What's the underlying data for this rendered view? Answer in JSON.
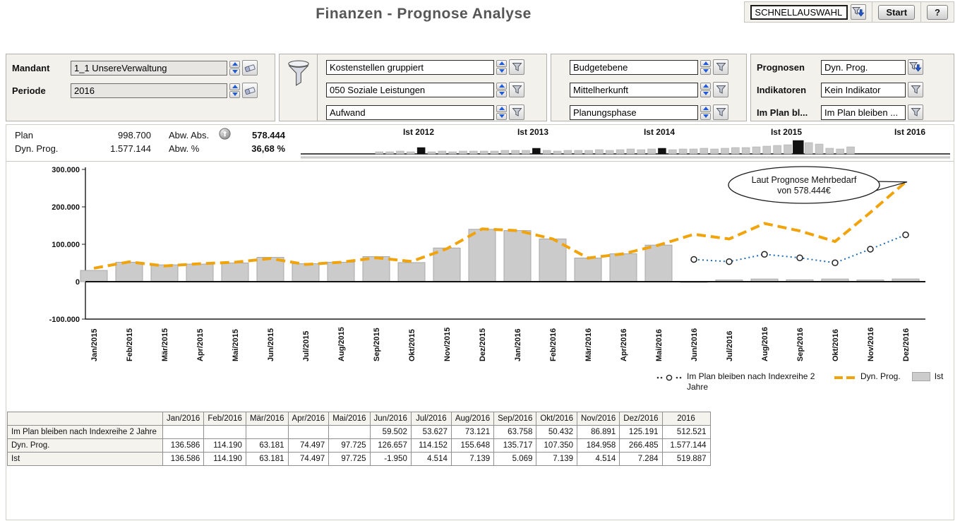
{
  "header": {
    "title": "Finanzen - Prognose Analyse",
    "quick_select_value": "SCHNELLAUSWAHL",
    "start_label": "Start",
    "help_label": "?"
  },
  "icons": {
    "filter": "funnel",
    "filter_apply": "funnel-with-down-arrow",
    "spinner": "▲▼",
    "reset": "eraser",
    "deviation_up": "↑"
  },
  "filters": {
    "mandant": {
      "label": "Mandant",
      "value": "1_1 UnsereVerwaltung"
    },
    "periode": {
      "label": "Periode",
      "value": "2016"
    },
    "dimension1": {
      "value": "Kostenstellen gruppiert"
    },
    "dimension2": {
      "value": "050 Soziale Leistungen"
    },
    "dimension3": {
      "value": "Aufwand"
    },
    "budget1": {
      "value": "Budgetebene"
    },
    "budget2": {
      "value": "Mittelherkunft"
    },
    "budget3": {
      "value": "Planungsphase"
    },
    "prognosen": {
      "label": "Prognosen",
      "value": "Dyn. Prog."
    },
    "indikatoren": {
      "label": "Indikatoren",
      "value": "Kein Indikator"
    },
    "im_plan": {
      "label": "Im Plan bl...",
      "value": "Im Plan bleiben ..."
    }
  },
  "stats": {
    "plan": {
      "label": "Plan",
      "value": "998.700"
    },
    "dyn_prog": {
      "label": "Dyn. Prog.",
      "value": "1.577.144"
    },
    "abw_abs": {
      "label": "Abw. Abs.",
      "value": "578.444"
    },
    "abw_pct": {
      "label": "Abw. %",
      "value": "36,68 %"
    }
  },
  "timeline": {
    "year_labels": [
      "Ist 2012",
      "Ist 2013",
      "Ist 2014",
      "Ist 2015",
      "Ist 2016"
    ],
    "spark": {
      "values": [
        0,
        0,
        0,
        0,
        0,
        0,
        0,
        2,
        2,
        3,
        2,
        8,
        2,
        3,
        2,
        3,
        3,
        3,
        3,
        4,
        4,
        4,
        7,
        4,
        3,
        4,
        4,
        4,
        5,
        4,
        5,
        6,
        5,
        6,
        7,
        5,
        6,
        6,
        7,
        6,
        7,
        8,
        8,
        9,
        10,
        11,
        12,
        18,
        15,
        13,
        7,
        6,
        9,
        0,
        0,
        0,
        0,
        0,
        0,
        0,
        0,
        0
      ],
      "markers": [
        11,
        22,
        34
      ],
      "big_marker": 47
    }
  },
  "chart_data": {
    "type": "combo",
    "categories": [
      "Jan/2015",
      "Feb/2015",
      "Mär/2015",
      "Apr/2015",
      "Mai/2015",
      "Jun/2015",
      "Jul/2015",
      "Aug/2015",
      "Sep/2015",
      "Okt/2015",
      "Nov/2015",
      "Dez/2015",
      "Jan/2016",
      "Feb/2016",
      "Mär/2016",
      "Apr/2016",
      "Mai/2016",
      "Jun/2016",
      "Jul/2016",
      "Aug/2016",
      "Sep/2016",
      "Okt/2016",
      "Nov/2016",
      "Dez/2016"
    ],
    "ylim": [
      -100000,
      300000
    ],
    "yticks": [
      {
        "v": 300000,
        "label": "300.000"
      },
      {
        "v": 200000,
        "label": "200.000"
      },
      {
        "v": 100000,
        "label": "100.000"
      },
      {
        "v": 0,
        "label": "0"
      },
      {
        "v": -100000,
        "label": "-100.000"
      }
    ],
    "series": [
      {
        "name": "Ist",
        "type": "bar",
        "color": "#cbcbcb",
        "values": [
          30000,
          52000,
          45000,
          47000,
          50000,
          65000,
          48000,
          52000,
          67000,
          51000,
          90000,
          140000,
          136586,
          114190,
          63181,
          74497,
          97725,
          -1950,
          4514,
          7139,
          5069,
          7139,
          4514,
          7284
        ]
      },
      {
        "name": "Dyn. Prog.",
        "type": "line-dashed",
        "color": "#f0a30a",
        "values": [
          36000,
          53000,
          42000,
          48000,
          52000,
          62000,
          46000,
          52000,
          64000,
          54000,
          88000,
          141000,
          136586,
          114190,
          63181,
          74497,
          97725,
          126657,
          114152,
          155648,
          135717,
          107350,
          184958,
          266485
        ]
      },
      {
        "name": "Im Plan bleiben nach Indexreihe 2 Jahre",
        "type": "line-dotted",
        "color": "#1f6cb5",
        "values": [
          null,
          null,
          null,
          null,
          null,
          null,
          null,
          null,
          null,
          null,
          null,
          null,
          null,
          null,
          null,
          null,
          null,
          59502,
          53627,
          73121,
          63758,
          50432,
          86891,
          125191
        ]
      }
    ],
    "annotation": {
      "line1": "Laut Prognose Mehrbedarf",
      "line2": "von 578.444€"
    },
    "legend": [
      "Im Plan bleiben nach Indexreihe 2 Jahre",
      "Dyn. Prog.",
      "Ist"
    ]
  },
  "table": {
    "columns": [
      "",
      "Jan/2016",
      "Feb/2016",
      "Mär/2016",
      "Apr/2016",
      "Mai/2016",
      "Jun/2016",
      "Jul/2016",
      "Aug/2016",
      "Sep/2016",
      "Okt/2016",
      "Nov/2016",
      "Dez/2016",
      "2016"
    ],
    "rows": [
      {
        "label": "Im Plan bleiben nach Indexreihe 2 Jahre",
        "values": [
          "",
          "",
          "",
          "",
          "",
          "59.502",
          "53.627",
          "73.121",
          "63.758",
          "50.432",
          "86.891",
          "125.191",
          "512.521"
        ]
      },
      {
        "label": "Dyn. Prog.",
        "values": [
          "136.586",
          "114.190",
          "63.181",
          "74.497",
          "97.725",
          "126.657",
          "114.152",
          "155.648",
          "135.717",
          "107.350",
          "184.958",
          "266.485",
          "1.577.144"
        ]
      },
      {
        "label": "Ist",
        "values": [
          "136.586",
          "114.190",
          "63.181",
          "74.497",
          "97.725",
          "-1.950",
          "4.514",
          "7.139",
          "5.069",
          "7.139",
          "4.514",
          "7.284",
          "519.887"
        ]
      }
    ]
  }
}
